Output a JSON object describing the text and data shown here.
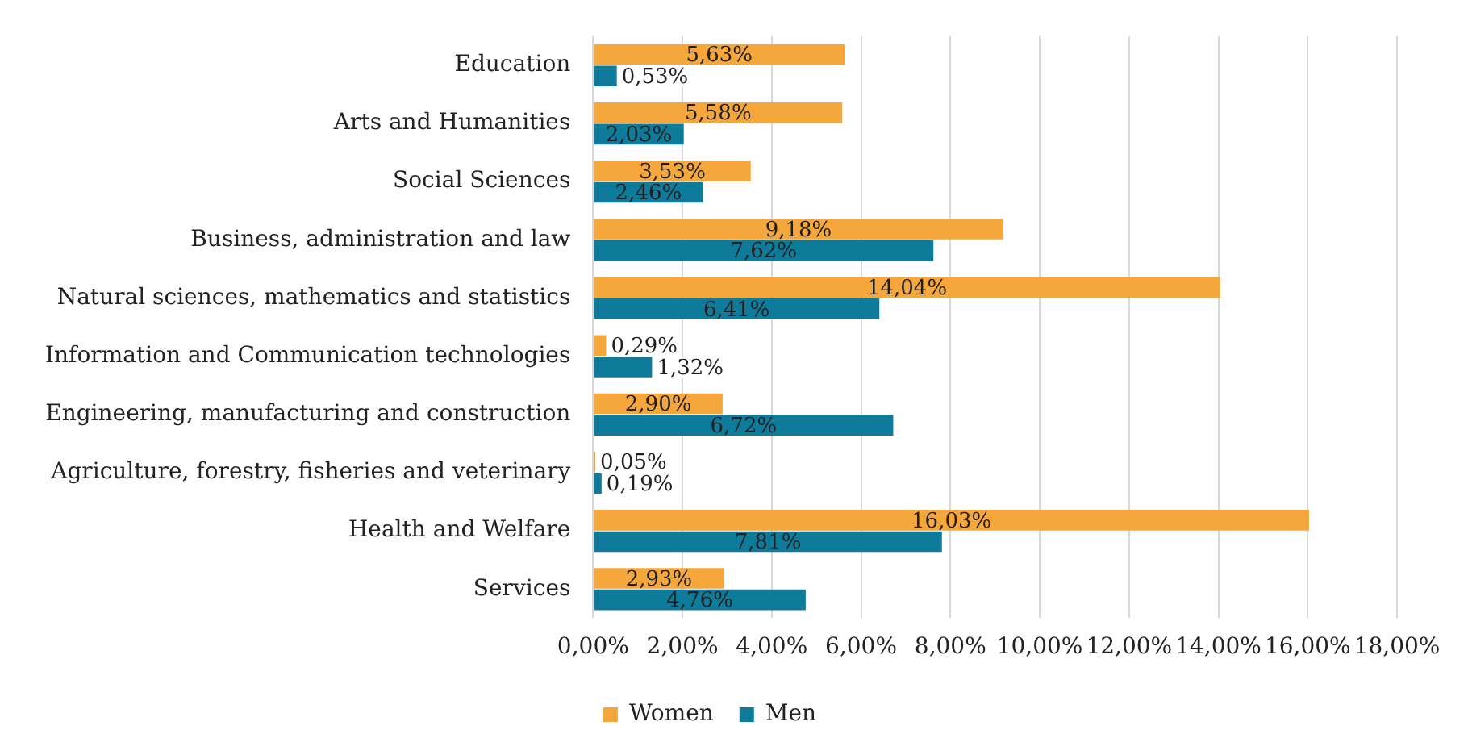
{
  "chart_data": {
    "type": "bar",
    "orientation": "horizontal",
    "categories": [
      "Education",
      "Arts and Humanities",
      "Social Sciences",
      "Business, administration and law",
      "Natural sciences, mathematics and statistics",
      "Information and Communication technologies",
      "Engineering, manufacturing and construction",
      "Agriculture, forestry, fisheries and veterinary",
      "Health and Welfare",
      "Services"
    ],
    "series": [
      {
        "name": "Women",
        "color": "#f6a73b",
        "values": [
          5.63,
          5.58,
          3.53,
          9.18,
          14.04,
          0.29,
          2.9,
          0.05,
          16.03,
          2.93
        ],
        "value_labels": [
          "5,63%",
          "5,58%",
          "3,53%",
          "9,18%",
          "14,04%",
          "0,29%",
          "2,90%",
          "0,05%",
          "16,03%",
          "2,93%"
        ]
      },
      {
        "name": "Men",
        "color": "#0f7b9b",
        "values": [
          0.53,
          2.03,
          2.46,
          7.62,
          6.41,
          1.32,
          6.72,
          0.19,
          7.81,
          4.76
        ],
        "value_labels": [
          "0,53%",
          "2,03%",
          "2,46%",
          "7,62%",
          "6,41%",
          "1,32%",
          "6,72%",
          "0,19%",
          "7,81%",
          "4,76%"
        ]
      }
    ],
    "xlim": [
      0,
      18
    ],
    "xticks": [
      {
        "value": 0,
        "label": "0,00%"
      },
      {
        "value": 2,
        "label": "2,00%"
      },
      {
        "value": 4,
        "label": "4,00%"
      },
      {
        "value": 6,
        "label": "6,00%"
      },
      {
        "value": 8,
        "label": "8,00%"
      },
      {
        "value": 10,
        "label": "10,00%"
      },
      {
        "value": 12,
        "label": "12,00%"
      },
      {
        "value": 14,
        "label": "14,00%"
      },
      {
        "value": 16,
        "label": "16,00%"
      },
      {
        "value": 18,
        "label": "18,00%"
      }
    ],
    "grid": "x",
    "legend": "bottom"
  }
}
